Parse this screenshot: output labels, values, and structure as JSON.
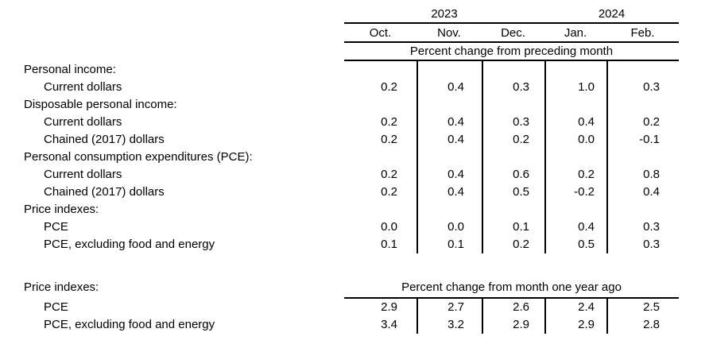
{
  "colors": {
    "text": "#000000",
    "rule": "#000000",
    "background": "#ffffff"
  },
  "header": {
    "years": [
      {
        "label": "2023"
      },
      {
        "label": "2024"
      }
    ],
    "months": [
      "Oct.",
      "Nov.",
      "Dec.",
      "Jan.",
      "Feb."
    ]
  },
  "section1": {
    "banner": "Percent change from preceding month",
    "rows": [
      {
        "label": "Personal income:",
        "values": null
      },
      {
        "label": "Current dollars",
        "values": [
          "0.2",
          "0.4",
          "0.3",
          "1.0",
          "0.3"
        ]
      },
      {
        "label": "Disposable personal income:",
        "values": null
      },
      {
        "label": "Current dollars",
        "values": [
          "0.2",
          "0.4",
          "0.3",
          "0.4",
          "0.2"
        ]
      },
      {
        "label": "Chained (2017) dollars",
        "values": [
          "0.2",
          "0.4",
          "0.2",
          "0.0",
          "-0.1"
        ]
      },
      {
        "label": "Personal consumption expenditures (PCE):",
        "values": null
      },
      {
        "label": "Current dollars",
        "values": [
          "0.2",
          "0.4",
          "0.6",
          "0.2",
          "0.8"
        ]
      },
      {
        "label": "Chained (2017) dollars",
        "values": [
          "0.2",
          "0.4",
          "0.5",
          "-0.2",
          "0.4"
        ]
      },
      {
        "label": "Price indexes:",
        "values": null
      },
      {
        "label": "PCE",
        "values": [
          "0.0",
          "0.0",
          "0.1",
          "0.4",
          "0.3"
        ]
      },
      {
        "label": "PCE, excluding food and energy",
        "values": [
          "0.1",
          "0.1",
          "0.2",
          "0.5",
          "0.3"
        ]
      }
    ]
  },
  "section2": {
    "label": "Price indexes:",
    "banner": "Percent change from month one year ago",
    "rows": [
      {
        "label": "PCE",
        "values": [
          "2.9",
          "2.7",
          "2.6",
          "2.4",
          "2.5"
        ]
      },
      {
        "label": "PCE, excluding food and energy",
        "values": [
          "3.4",
          "3.2",
          "2.9",
          "2.9",
          "2.8"
        ]
      }
    ]
  },
  "chart_data": {
    "type": "table",
    "columns": [
      "Oct. 2023",
      "Nov. 2023",
      "Dec. 2023",
      "Jan. 2024",
      "Feb. 2024"
    ],
    "sections": [
      {
        "unit": "Percent change from preceding month",
        "rows": [
          {
            "label": "Personal income: Current dollars",
            "values": [
              0.2,
              0.4,
              0.3,
              1.0,
              0.3
            ]
          },
          {
            "label": "Disposable personal income: Current dollars",
            "values": [
              0.2,
              0.4,
              0.3,
              0.4,
              0.2
            ]
          },
          {
            "label": "Disposable personal income: Chained (2017) dollars",
            "values": [
              0.2,
              0.4,
              0.2,
              0.0,
              -0.1
            ]
          },
          {
            "label": "Personal consumption expenditures (PCE): Current dollars",
            "values": [
              0.2,
              0.4,
              0.6,
              0.2,
              0.8
            ]
          },
          {
            "label": "Personal consumption expenditures (PCE): Chained (2017) dollars",
            "values": [
              0.2,
              0.4,
              0.5,
              -0.2,
              0.4
            ]
          },
          {
            "label": "Price indexes: PCE",
            "values": [
              0.0,
              0.0,
              0.1,
              0.4,
              0.3
            ]
          },
          {
            "label": "Price indexes: PCE, excluding food and energy",
            "values": [
              0.1,
              0.1,
              0.2,
              0.5,
              0.3
            ]
          }
        ]
      },
      {
        "unit": "Percent change from month one year ago",
        "rows": [
          {
            "label": "Price indexes: PCE",
            "values": [
              2.9,
              2.7,
              2.6,
              2.4,
              2.5
            ]
          },
          {
            "label": "Price indexes: PCE, excluding food and energy",
            "values": [
              3.4,
              3.2,
              2.9,
              2.9,
              2.8
            ]
          }
        ]
      }
    ]
  }
}
